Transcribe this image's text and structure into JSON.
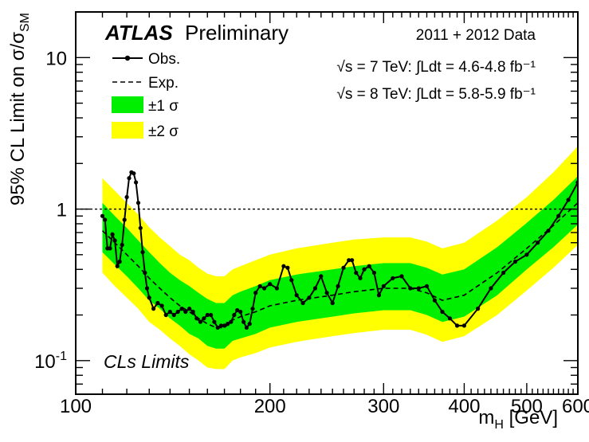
{
  "chart_data": {
    "type": "line",
    "header": {
      "experiment": "ATLAS",
      "status": "Preliminary",
      "dataset": "2011 + 2012 Data",
      "lumi_7": "√s = 7 TeV: ∫Ldt = 4.6-4.8 fb⁻¹",
      "lumi_8": "√s = 8 TeV: ∫Ldt = 5.8-5.9 fb⁻¹",
      "method": "CLs Limits"
    },
    "xlabel": "m_H [GeV]",
    "xlabel_main": "m",
    "xlabel_sub": "H",
    "xlabel_unit": " [GeV]",
    "ylabel": "95% CL Limit on σ/σ_SM",
    "ylabel_main": "95% CL Limit on σ/σ",
    "ylabel_sub": "SM",
    "x_scale": "log",
    "y_scale": "log",
    "xlim": [
      100,
      600
    ],
    "ylim": [
      0.06,
      20
    ],
    "x_ticks": [
      {
        "value": 100,
        "label": "100"
      },
      {
        "value": 200,
        "label": "200"
      },
      {
        "value": 300,
        "label": "300"
      },
      {
        "value": 400,
        "label": "400"
      },
      {
        "value": 500,
        "label": "500"
      },
      {
        "value": 600,
        "label": "600"
      }
    ],
    "y_ticks": [
      {
        "value": 0.1,
        "label_base": "10",
        "label_exp": "-1"
      },
      {
        "value": 1,
        "label_base": "1",
        "label_exp": ""
      },
      {
        "value": 10,
        "label_base": "10",
        "label_exp": ""
      }
    ],
    "reference_line": 1,
    "legend": {
      "position": "top-left",
      "obs": "Obs.",
      "exp": "Exp.",
      "band1": "±1 σ",
      "band2": "±2 σ"
    },
    "colors": {
      "band1": "#00ee00",
      "band2": "#ffff00",
      "observed": "#000000",
      "expected": "#000000"
    },
    "series": [
      {
        "name": "Exp.",
        "role": "expected",
        "x": [
          110,
          115,
          120,
          125,
          130,
          135,
          140,
          145,
          150,
          155,
          160,
          165,
          170,
          175,
          180,
          190,
          200,
          220,
          250,
          270,
          300,
          330,
          350,
          370,
          400,
          450,
          500,
          550,
          600
        ],
        "y": [
          0.72,
          0.6,
          0.5,
          0.42,
          0.35,
          0.3,
          0.26,
          0.23,
          0.21,
          0.19,
          0.175,
          0.165,
          0.165,
          0.185,
          0.195,
          0.21,
          0.23,
          0.25,
          0.27,
          0.285,
          0.3,
          0.3,
          0.28,
          0.25,
          0.27,
          0.38,
          0.55,
          0.78,
          1.1
        ]
      },
      {
        "name": "±1 σ",
        "role": "band1",
        "x": [
          110,
          115,
          120,
          125,
          130,
          135,
          140,
          145,
          150,
          155,
          160,
          165,
          170,
          175,
          180,
          190,
          200,
          220,
          250,
          270,
          300,
          330,
          350,
          370,
          400,
          450,
          500,
          550,
          600
        ],
        "low": [
          0.52,
          0.43,
          0.36,
          0.3,
          0.25,
          0.22,
          0.19,
          0.17,
          0.15,
          0.14,
          0.125,
          0.12,
          0.12,
          0.135,
          0.14,
          0.15,
          0.165,
          0.18,
          0.195,
          0.205,
          0.215,
          0.215,
          0.2,
          0.18,
          0.195,
          0.27,
          0.4,
          0.56,
          0.79
        ],
        "high": [
          1.1,
          0.9,
          0.75,
          0.62,
          0.52,
          0.44,
          0.38,
          0.34,
          0.31,
          0.28,
          0.255,
          0.24,
          0.24,
          0.27,
          0.285,
          0.31,
          0.34,
          0.37,
          0.4,
          0.42,
          0.44,
          0.44,
          0.41,
          0.37,
          0.4,
          0.56,
          0.81,
          1.15,
          1.65
        ]
      },
      {
        "name": "±2 σ",
        "role": "band2",
        "x": [
          110,
          115,
          120,
          125,
          130,
          135,
          140,
          145,
          150,
          155,
          160,
          165,
          170,
          175,
          180,
          190,
          200,
          220,
          250,
          270,
          300,
          330,
          350,
          370,
          400,
          450,
          500,
          550,
          600
        ],
        "low": [
          0.38,
          0.31,
          0.26,
          0.22,
          0.18,
          0.16,
          0.14,
          0.125,
          0.11,
          0.1,
          0.09,
          0.088,
          0.088,
          0.1,
          0.105,
          0.112,
          0.122,
          0.133,
          0.145,
          0.152,
          0.16,
          0.16,
          0.148,
          0.133,
          0.145,
          0.2,
          0.29,
          0.41,
          0.58
        ],
        "high": [
          1.6,
          1.32,
          1.1,
          0.92,
          0.76,
          0.65,
          0.57,
          0.5,
          0.46,
          0.41,
          0.375,
          0.36,
          0.36,
          0.4,
          0.42,
          0.46,
          0.5,
          0.55,
          0.6,
          0.63,
          0.65,
          0.65,
          0.61,
          0.55,
          0.6,
          0.84,
          1.2,
          1.75,
          2.6
        ]
      },
      {
        "name": "Obs.",
        "role": "observed",
        "x": [
          110,
          111,
          112,
          113,
          114,
          115,
          116,
          117,
          118,
          119,
          120,
          121,
          122,
          123,
          124,
          125,
          126,
          127,
          128,
          129,
          130,
          132,
          134,
          136,
          138,
          140,
          142,
          144,
          146,
          148,
          150,
          152,
          154,
          156,
          158,
          160,
          162,
          164,
          166,
          168,
          170,
          172,
          174,
          176,
          178,
          180,
          182,
          184,
          186,
          188,
          190,
          193,
          196,
          200,
          205,
          210,
          213,
          216,
          220,
          225,
          230,
          235,
          240,
          245,
          250,
          255,
          260,
          265,
          268,
          272,
          276,
          280,
          285,
          290,
          295,
          300,
          310,
          320,
          330,
          340,
          350,
          360,
          370,
          380,
          390,
          400,
          420,
          440,
          460,
          480,
          500,
          520,
          540,
          560,
          580,
          600
        ],
        "y": [
          0.9,
          0.85,
          0.55,
          0.55,
          0.68,
          0.62,
          0.42,
          0.45,
          0.58,
          0.85,
          1.2,
          1.6,
          1.75,
          1.72,
          1.5,
          1.1,
          0.75,
          0.52,
          0.38,
          0.3,
          0.26,
          0.22,
          0.24,
          0.23,
          0.2,
          0.21,
          0.2,
          0.21,
          0.22,
          0.21,
          0.22,
          0.21,
          0.19,
          0.18,
          0.19,
          0.2,
          0.2,
          0.18,
          0.165,
          0.17,
          0.17,
          0.175,
          0.18,
          0.2,
          0.215,
          0.21,
          0.18,
          0.165,
          0.175,
          0.22,
          0.28,
          0.31,
          0.3,
          0.32,
          0.3,
          0.42,
          0.41,
          0.34,
          0.27,
          0.24,
          0.26,
          0.3,
          0.36,
          0.28,
          0.24,
          0.31,
          0.41,
          0.46,
          0.46,
          0.38,
          0.35,
          0.4,
          0.42,
          0.38,
          0.27,
          0.31,
          0.35,
          0.36,
          0.3,
          0.3,
          0.31,
          0.25,
          0.21,
          0.19,
          0.17,
          0.17,
          0.22,
          0.3,
          0.38,
          0.45,
          0.5,
          0.6,
          0.72,
          0.9,
          1.15,
          1.5
        ]
      }
    ]
  }
}
